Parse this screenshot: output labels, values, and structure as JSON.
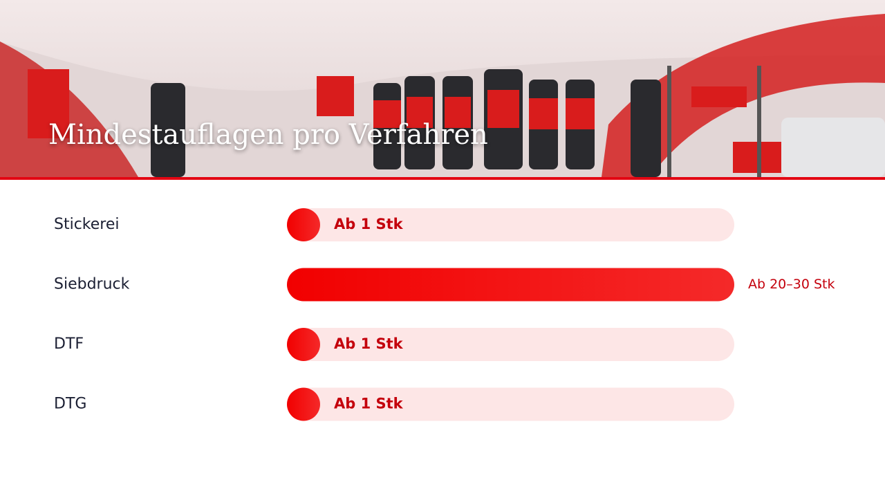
{
  "chart_data": {
    "type": "hbar",
    "title": "Mindestauflagen pro Verfahren",
    "categories": [
      "Stickerei",
      "Siebdruck",
      "DTF",
      "DTG"
    ],
    "values": [
      1,
      30,
      1,
      1
    ],
    "value_labels": [
      "Ab 1 Stk",
      "Ab 20–30 Stk",
      "Ab 1 Stk",
      "Ab 1 Stk"
    ],
    "color": "#f20000",
    "track_color": "#fde6e6",
    "xlim": [
      0,
      30
    ]
  }
}
